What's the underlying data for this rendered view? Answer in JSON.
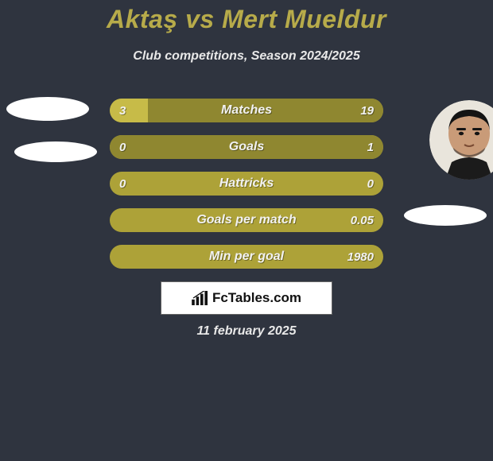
{
  "colors": {
    "background": "#2f343f",
    "title": "#b7ab4a",
    "subtitle": "#e8e8e8",
    "bar_bg": "#ada238",
    "bar_left": "#c7bb48",
    "bar_right": "#8f8730",
    "bar_text": "#f2f2f2",
    "avatar_placeholder": "#ffffff",
    "brand_bg": "#ffffff",
    "date_text": "#e8e8e8"
  },
  "title": "Aktaş vs Mert Mueldur",
  "subtitle": "Club competitions, Season 2024/2025",
  "date": "11 february 2025",
  "brand": "FcTables.com",
  "rows": [
    {
      "label": "Matches",
      "left_val": "3",
      "right_val": "19",
      "left_pct": 14,
      "right_pct": 86
    },
    {
      "label": "Goals",
      "left_val": "0",
      "right_val": "1",
      "left_pct": 0,
      "right_pct": 100
    },
    {
      "label": "Hattricks",
      "left_val": "0",
      "right_val": "0",
      "left_pct": 0,
      "right_pct": 0
    },
    {
      "label": "Goals per match",
      "left_val": "",
      "right_val": "0.05",
      "left_pct": 0,
      "right_pct": 0
    },
    {
      "label": "Min per goal",
      "left_val": "",
      "right_val": "1980",
      "left_pct": 0,
      "right_pct": 0
    }
  ]
}
